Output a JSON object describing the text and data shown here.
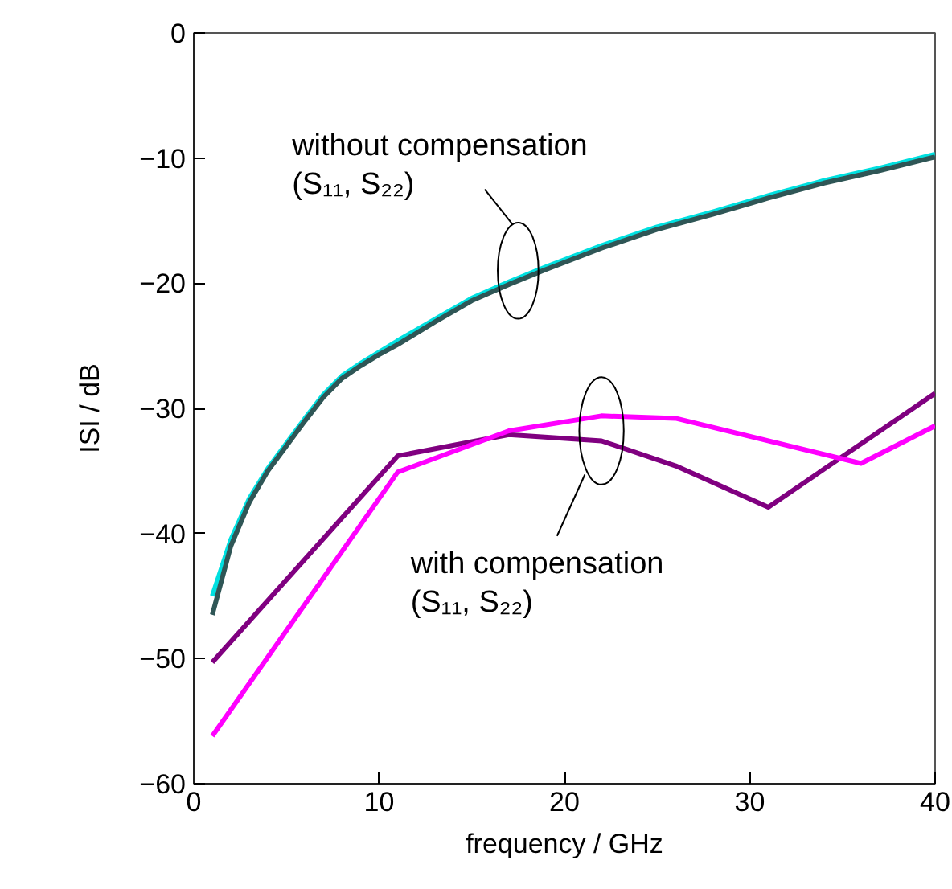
{
  "chart_data": {
    "type": "line",
    "xlabel": "frequency / GHz",
    "ylabel": "ISI / dB",
    "xlim": [
      0,
      40
    ],
    "xticks": [
      0,
      10,
      20,
      30,
      40
    ],
    "ylim": [
      -60,
      0
    ],
    "yticks": [
      -60,
      -50,
      -40,
      -30,
      -20,
      -10,
      0
    ],
    "grid": false,
    "marker": "none",
    "line_style": "solid",
    "annotations": [
      "without compensation\n(S₁₁, S₂₂)",
      "with compensation\n(S₁₁, S₂₂)"
    ],
    "series": [
      {
        "color": "#00e0e0",
        "x": [
          1,
          2,
          3,
          4,
          5,
          6,
          7,
          8,
          9,
          10,
          11,
          13,
          15,
          17,
          19,
          22,
          25,
          28,
          31,
          34,
          37,
          40
        ],
        "values": [
          -45.0,
          -40.5,
          -37.2,
          -34.8,
          -32.8,
          -30.8,
          -28.9,
          -27.4,
          -26.4,
          -25.5,
          -24.6,
          -22.9,
          -21.2,
          -19.9,
          -18.7,
          -17.0,
          -15.5,
          -14.3,
          -13.0,
          -11.8,
          -10.8,
          -9.7
        ]
      },
      {
        "color": "#2f5656",
        "x": [
          1,
          2,
          3,
          4,
          5,
          6,
          7,
          8,
          9,
          10,
          11,
          13,
          15,
          17,
          19,
          22,
          25,
          28,
          31,
          34,
          37,
          40
        ],
        "values": [
          -46.5,
          -41.0,
          -37.5,
          -35.0,
          -33.0,
          -31.0,
          -29.1,
          -27.6,
          -26.6,
          -25.7,
          -24.9,
          -23.1,
          -21.4,
          -20.1,
          -18.9,
          -17.2,
          -15.7,
          -14.5,
          -13.2,
          -12.0,
          -11.0,
          -9.9
        ]
      },
      {
        "color": "#800080",
        "x": [
          1,
          11,
          17,
          22,
          26,
          31,
          40
        ],
        "values": [
          -50.3,
          -33.8,
          -32.1,
          -32.6,
          -34.6,
          -37.9,
          -28.8
        ]
      },
      {
        "color": "#ff00ff",
        "x": [
          1,
          11,
          17,
          22,
          26,
          36,
          40
        ],
        "values": [
          -56.2,
          -35.1,
          -31.8,
          -30.6,
          -30.8,
          -34.4,
          -31.4
        ]
      }
    ]
  }
}
